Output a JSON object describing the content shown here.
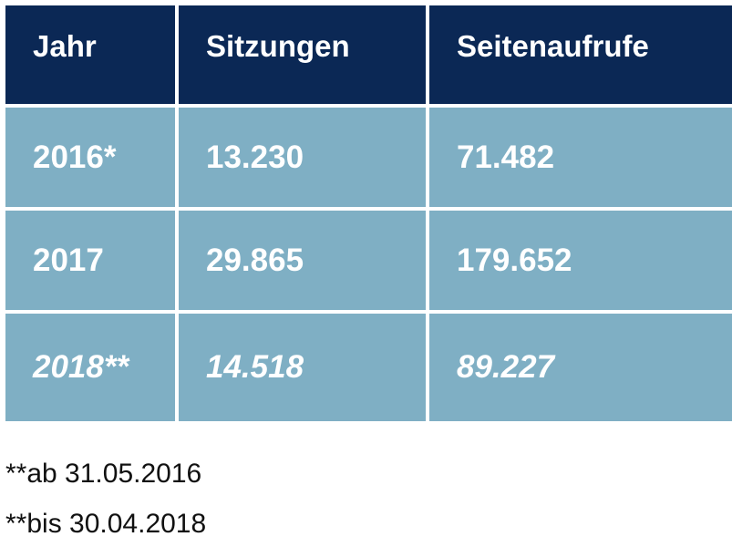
{
  "table": {
    "headers": [
      "Jahr",
      "Sitzungen",
      "Seitenaufrufe"
    ],
    "rows": [
      {
        "year": "2016*",
        "sessions": "13.230",
        "page_views": "71.482"
      },
      {
        "year": "2017",
        "sessions": "29.865",
        "page_views": "179.652"
      },
      {
        "year": "2018**",
        "sessions": "14.518",
        "page_views": "89.227"
      }
    ]
  },
  "footnotes": [
    "**ab 31.05.2016",
    "**bis 30.04.2018"
  ],
  "colors": {
    "header_background": "#0b2855",
    "cell_background": "#7fafc4",
    "cell_text": "#ffffff",
    "footnote_text": "#111111"
  }
}
